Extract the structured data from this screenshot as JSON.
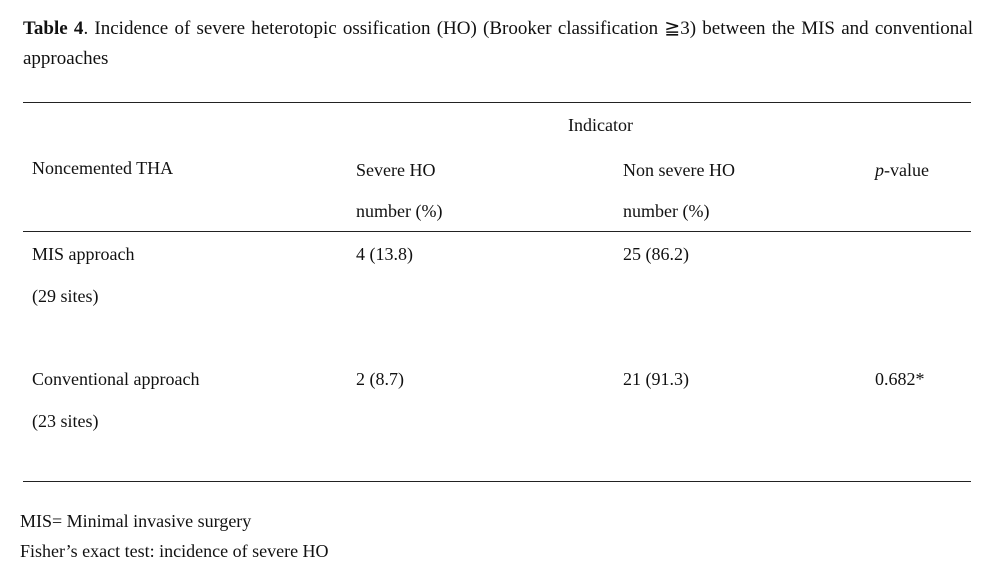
{
  "caption": {
    "label": "Table 4",
    "text": ". Incidence of severe heterotopic ossification (HO) (Brooker classification ≧3) between the MIS and conventional approaches"
  },
  "table": {
    "group_header": "Indicator",
    "row_header": "Noncemented THA",
    "columns": {
      "severe_line1": "Severe  HO",
      "severe_line2": "number (%)",
      "nonsevere_line1": "Non severe HO",
      "nonsevere_line2": "number (%)",
      "pvalue_italic": "p",
      "pvalue_rest": "-value"
    },
    "rows": [
      {
        "name": "MIS approach",
        "sites": "(29 sites)",
        "severe": "4 (13.8)",
        "nonsevere": "25 (86.2)",
        "pvalue": ""
      },
      {
        "name": "Conventional approach",
        "sites": "(23 sites)",
        "severe": "2 (8.7)",
        "nonsevere": "21 (91.3)",
        "pvalue": "0.682*"
      }
    ]
  },
  "notes": [
    "MIS= Minimal invasive  surgery",
    "Fisher’s exact test: incidence of severe HO"
  ]
}
